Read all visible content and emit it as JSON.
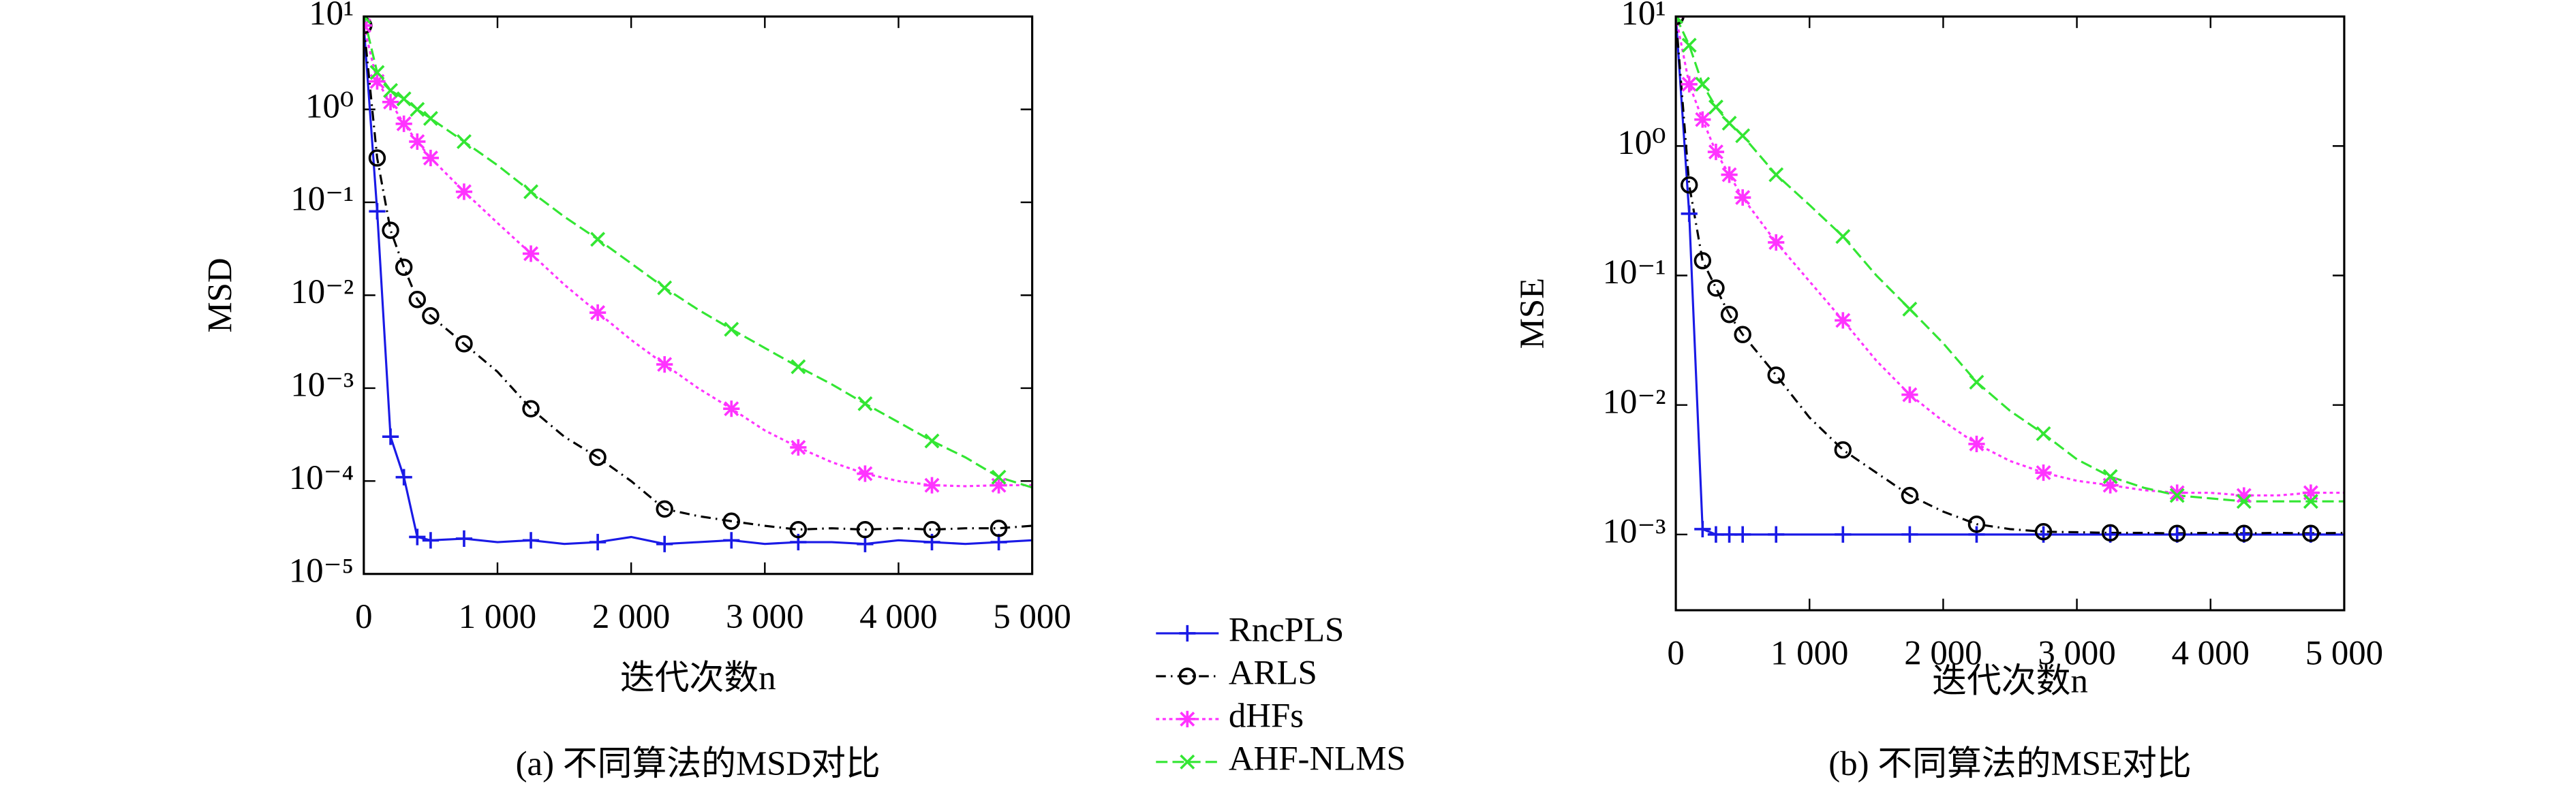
{
  "chart_data": [
    {
      "type": "line",
      "caption": "(a) 不同算法的MSD对比",
      "xlabel": "迭代次数n",
      "ylabel": "MSD",
      "log_y": true,
      "x": [
        0,
        100,
        200,
        300,
        400,
        500,
        750,
        1000,
        1250,
        1500,
        1750,
        2000,
        2250,
        2500,
        2750,
        3000,
        3250,
        3500,
        3750,
        4000,
        4250,
        4500,
        4750,
        5000
      ],
      "xlim": [
        0,
        5000
      ],
      "xticks": [
        0,
        {
          "value": 1000,
          "label": "1 000"
        },
        {
          "value": 2000,
          "label": "2 000"
        },
        {
          "value": 3000,
          "label": "3 000"
        },
        {
          "value": 4000,
          "label": "4 000"
        },
        {
          "value": 5000,
          "label": "5 000"
        }
      ],
      "ylim": [
        1e-05,
        10
      ],
      "yticks": [
        {
          "value": 10,
          "label": "10¹"
        },
        {
          "value": 1,
          "label": "10⁰"
        },
        {
          "value": 0.1,
          "label": "10⁻¹"
        },
        {
          "value": 0.01,
          "label": "10⁻²"
        },
        {
          "value": 0.001,
          "label": "10⁻³"
        },
        {
          "value": 0.0001,
          "label": "10⁻⁴"
        },
        {
          "value": 1e-05,
          "label": "10⁻⁵"
        }
      ],
      "series": [
        {
          "name": "RncPLS",
          "color": "#1a1ae6",
          "marker": "plus",
          "dash": "none",
          "values": [
            8,
            0.08,
            0.0003,
            0.00011,
            2.5e-05,
            2.3e-05,
            2.4e-05,
            2.2e-05,
            2.3e-05,
            2.1e-05,
            2.2e-05,
            2.5e-05,
            2.1e-05,
            2.2e-05,
            2.3e-05,
            2.1e-05,
            2.2e-05,
            2.2e-05,
            2.1e-05,
            2.3e-05,
            2.2e-05,
            2.1e-05,
            2.2e-05,
            2.3e-05
          ]
        },
        {
          "name": "ARLS",
          "color": "#000000",
          "marker": "circle",
          "dash": "6 3 1 3",
          "values": [
            8,
            0.3,
            0.05,
            0.02,
            0.009,
            0.006,
            0.003,
            0.0015,
            0.0006,
            0.0003,
            0.00018,
            0.0001,
            5e-05,
            4.2e-05,
            3.7e-05,
            3.3e-05,
            3e-05,
            3.1e-05,
            3e-05,
            3.1e-05,
            3e-05,
            3.1e-05,
            3.1e-05,
            3.3e-05
          ]
        },
        {
          "name": "dHFs",
          "color": "#ff33ff",
          "marker": "star",
          "dash": "2 2",
          "values": [
            8,
            2,
            1.2,
            0.7,
            0.45,
            0.3,
            0.13,
            0.06,
            0.028,
            0.013,
            0.0065,
            0.0033,
            0.0018,
            0.001,
            0.0006,
            0.00035,
            0.00023,
            0.00016,
            0.00012,
            0.0001,
            9e-05,
            8.8e-05,
            9e-05,
            9e-05
          ]
        },
        {
          "name": "AHF-NLMS",
          "color": "#33e633",
          "marker": "cross",
          "dash": "7 3",
          "values": [
            10,
            2.5,
            1.6,
            1.3,
            1,
            0.8,
            0.45,
            0.25,
            0.13,
            0.07,
            0.04,
            0.022,
            0.012,
            0.007,
            0.0043,
            0.0027,
            0.0017,
            0.0011,
            0.00068,
            0.00043,
            0.00027,
            0.00018,
            0.00011,
            8.5e-05
          ]
        }
      ]
    },
    {
      "type": "line",
      "caption": "(b) 不同算法的MSE对比",
      "xlabel": "迭代次数n",
      "ylabel": "MSE",
      "log_y": true,
      "x": [
        0,
        100,
        200,
        300,
        400,
        500,
        750,
        1000,
        1250,
        1500,
        1750,
        2000,
        2250,
        2500,
        2750,
        3000,
        3250,
        3500,
        3750,
        4000,
        4250,
        4500,
        4750,
        5000
      ],
      "xlim": [
        0,
        5000
      ],
      "xticks": [
        0,
        {
          "value": 1000,
          "label": "1 000"
        },
        {
          "value": 2000,
          "label": "2 000"
        },
        {
          "value": 3000,
          "label": "3 000"
        },
        {
          "value": 4000,
          "label": "4 000"
        },
        {
          "value": 5000,
          "label": "5 000"
        }
      ],
      "ylim": [
        0.00026,
        10
      ],
      "yticks": [
        {
          "value": 10,
          "label": "10¹"
        },
        {
          "value": 1,
          "label": "10⁰"
        },
        {
          "value": 0.1,
          "label": "10⁻¹"
        },
        {
          "value": 0.01,
          "label": "10⁻²"
        },
        {
          "value": 0.001,
          "label": "10⁻³"
        }
      ],
      "series": [
        {
          "color": "#1a1ae6",
          "marker": "plus",
          "dash": "none",
          "values": [
            10,
            0.3,
            0.0011,
            0.001,
            0.001,
            0.001,
            0.001,
            0.001,
            0.001,
            0.001,
            0.001,
            0.001,
            0.001,
            0.001,
            0.001,
            0.001,
            0.001,
            0.001,
            0.001,
            0.001,
            0.001,
            0.001,
            0.001,
            0.001
          ]
        },
        {
          "color": "#000000",
          "marker": "circle",
          "dash": "6 3 1 3",
          "values": [
            10,
            0.5,
            0.13,
            0.08,
            0.05,
            0.035,
            0.017,
            0.008,
            0.0045,
            0.003,
            0.002,
            0.0015,
            0.0012,
            0.0011,
            0.00105,
            0.00104,
            0.00103,
            0.00103,
            0.00102,
            0.00103,
            0.00102,
            0.00103,
            0.00102,
            0.00103
          ]
        },
        {
          "color": "#ff33ff",
          "marker": "star",
          "dash": "2 2",
          "values": [
            10,
            3,
            1.6,
            0.9,
            0.6,
            0.4,
            0.18,
            0.09,
            0.045,
            0.022,
            0.012,
            0.0075,
            0.005,
            0.0037,
            0.003,
            0.0026,
            0.0024,
            0.0022,
            0.0021,
            0.0021,
            0.002,
            0.002,
            0.0021,
            0.0021
          ]
        },
        {
          "color": "#33e633",
          "marker": "cross",
          "dash": "7 3",
          "values": [
            10,
            6,
            3,
            2,
            1.5,
            1.2,
            0.6,
            0.35,
            0.2,
            0.1,
            0.055,
            0.03,
            0.015,
            0.009,
            0.006,
            0.0038,
            0.0028,
            0.0023,
            0.002,
            0.0019,
            0.0018,
            0.0018,
            0.0018,
            0.0018
          ]
        }
      ]
    }
  ]
}
